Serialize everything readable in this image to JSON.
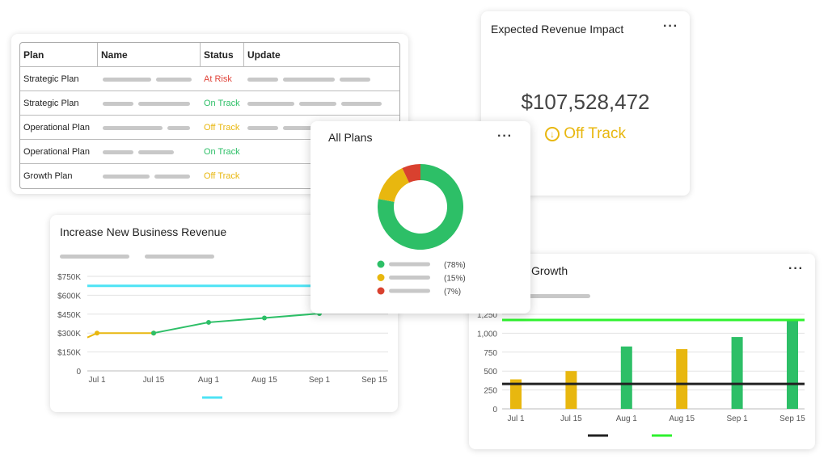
{
  "plans_table": {
    "headers": [
      "Plan",
      "Name",
      "Status",
      "Update"
    ],
    "rows": [
      {
        "plan": "Strategic Plan",
        "status": "At Risk",
        "status_color": "#e0443a"
      },
      {
        "plan": "Strategic Plan",
        "status": "On Track",
        "status_color": "#2dbf67"
      },
      {
        "plan": "Operational Plan",
        "status": "Off Track",
        "status_color": "#e8b70f"
      },
      {
        "plan": "Operational Plan",
        "status": "On Track",
        "status_color": "#2dbf67"
      },
      {
        "plan": "Growth Plan",
        "status": "Off Track",
        "status_color": "#e8b70f"
      }
    ]
  },
  "revenue_card": {
    "title": "Expected Revenue Impact",
    "value": "$107,528,472",
    "status": "Off Track",
    "status_icon": "arrow-down-circle-icon",
    "status_color": "#e8b70f",
    "menu_icon": "more-horizontal-icon"
  },
  "all_plans": {
    "title": "All Plans",
    "chart_data": {
      "type": "pie",
      "donut": true,
      "slices": [
        {
          "label": "(78%)",
          "value": 78,
          "color": "#2dbf67"
        },
        {
          "label": "(15%)",
          "value": 15,
          "color": "#e8b70f"
        },
        {
          "label": "(7%)",
          "value": 7,
          "color": "#d9412f"
        }
      ]
    }
  },
  "chart_data": [
    {
      "type": "line",
      "title": "Increase New Business Revenue",
      "x_ticks": [
        "Jul 1",
        "Jul 15",
        "Aug 1",
        "Aug 15",
        "Sep 1",
        "Sep 15"
      ],
      "y_ticks": [
        "0",
        "$150K",
        "$300K",
        "$450K",
        "$600K",
        "$750K"
      ],
      "ylim": [
        0,
        750
      ],
      "grid": true,
      "target": {
        "value": 675,
        "color": "#4ee3f5"
      },
      "series": [
        {
          "color": "#e8b70f",
          "points": [
            {
              "x": "Jun 28",
              "y": 265
            },
            {
              "x": "Jul 1",
              "y": 300
            },
            {
              "x": "Jul 15",
              "y": 300
            }
          ]
        },
        {
          "color": "#2dbf67",
          "points": [
            {
              "x": "Jul 15",
              "y": 300
            },
            {
              "x": "Aug 1",
              "y": 385
            },
            {
              "x": "Aug 15",
              "y": 420
            },
            {
              "x": "Sep 1",
              "y": 455
            }
          ]
        }
      ]
    },
    {
      "type": "bar",
      "title": "Growth",
      "categories": [
        "Jul 1",
        "Jul 15",
        "Aug 1",
        "Aug 15",
        "Sep 1",
        "Sep 15"
      ],
      "values": [
        390,
        500,
        825,
        790,
        950,
        1170
      ],
      "colors": [
        "#e8b70f",
        "#e8b70f",
        "#2dbf67",
        "#e8b70f",
        "#2dbf67",
        "#2dbf67"
      ],
      "y_ticks": [
        "0",
        "250",
        "500",
        "750",
        "1,000",
        "1,250"
      ],
      "ylim": [
        0,
        1250
      ],
      "grid": true,
      "reference_lines": [
        {
          "value": 330,
          "color": "#222222"
        },
        {
          "value": 1175,
          "color": "#2ef22e"
        }
      ]
    }
  ]
}
